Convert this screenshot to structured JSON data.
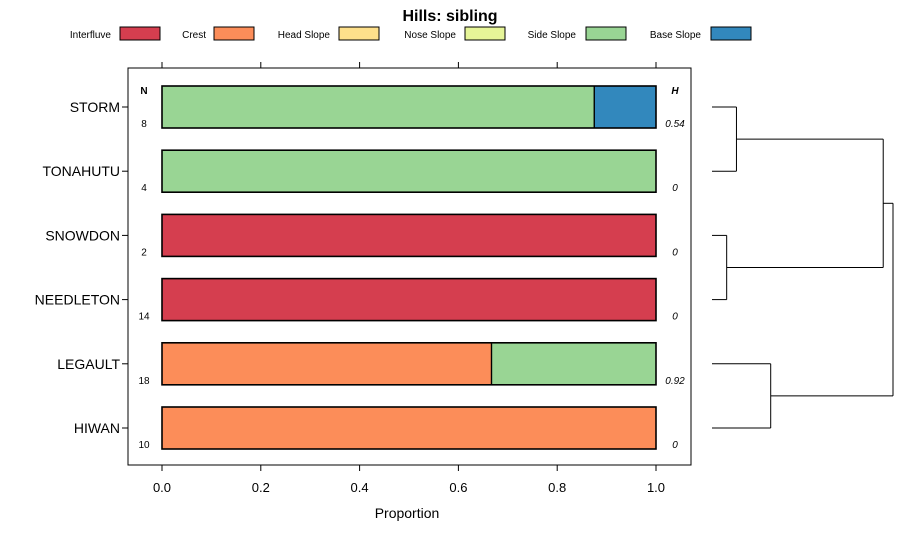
{
  "chart_data": {
    "type": "bar",
    "orientation": "horizontal",
    "stacked": true,
    "title": "Hills: sibling",
    "xlabel": "Proportion",
    "ylabel": "",
    "xlim": [
      0,
      1
    ],
    "xticks": [
      "0.0",
      "0.2",
      "0.4",
      "0.6",
      "0.8",
      "1.0"
    ],
    "n_header": "N",
    "h_header": "H",
    "legend": [
      {
        "name": "Interfluve",
        "color": "#D53E4F"
      },
      {
        "name": "Crest",
        "color": "#FC8D59"
      },
      {
        "name": "Head Slope",
        "color": "#FEE08B"
      },
      {
        "name": "Nose Slope",
        "color": "#E6F598"
      },
      {
        "name": "Side Slope",
        "color": "#99D594"
      },
      {
        "name": "Base Slope",
        "color": "#3288BD"
      }
    ],
    "categories": [
      "STORM",
      "TONAHUTU",
      "SNOWDON",
      "NEEDLETON",
      "LEGAULT",
      "HIWAN"
    ],
    "n": [
      "8",
      "4",
      "2",
      "14",
      "18",
      "10"
    ],
    "h": [
      "0.54",
      "0",
      "0",
      "0",
      "0.92",
      "0"
    ],
    "series": [
      {
        "name": "Interfluve",
        "values": [
          0,
          0,
          1,
          1,
          0,
          0
        ]
      },
      {
        "name": "Crest",
        "values": [
          0,
          0,
          0,
          0,
          0.667,
          1
        ]
      },
      {
        "name": "Head Slope",
        "values": [
          0,
          0,
          0,
          0,
          0,
          0
        ]
      },
      {
        "name": "Nose Slope",
        "values": [
          0,
          0,
          0,
          0,
          0,
          0
        ]
      },
      {
        "name": "Side Slope",
        "values": [
          0.875,
          1,
          0,
          0,
          0.333,
          0
        ]
      },
      {
        "name": "Base Slope",
        "values": [
          0.125,
          0,
          0,
          0,
          0,
          0
        ]
      }
    ],
    "dendrogram": {
      "merges": [
        {
          "a": 0,
          "b": 1,
          "height": 0.1
        },
        {
          "a": 2,
          "b": 3,
          "height": 0.06
        },
        {
          "a": 4,
          "b": 5,
          "height": 0.24
        },
        {
          "a": "m0",
          "b": "m1",
          "height": 0.7
        },
        {
          "a": "m3",
          "b": "m2",
          "height": 0.74
        }
      ]
    }
  }
}
